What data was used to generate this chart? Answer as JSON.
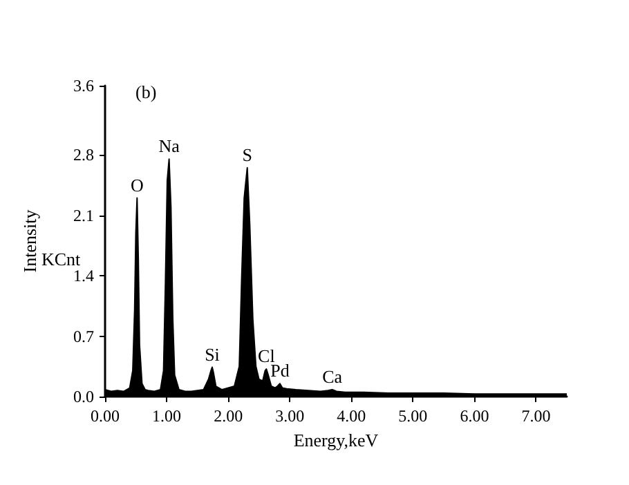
{
  "chart_data": {
    "type": "area",
    "xlabel": "Energy,keV",
    "ylabel": "Intensity",
    "x": [
      0,
      0.1,
      0.2,
      0.3,
      0.4,
      0.45,
      0.48,
      0.5,
      0.52,
      0.54,
      0.56,
      0.6,
      0.65,
      0.7,
      0.8,
      0.9,
      0.95,
      0.98,
      1.01,
      1.04,
      1.07,
      1.1,
      1.13,
      1.2,
      1.3,
      1.4,
      1.5,
      1.6,
      1.68,
      1.72,
      1.74,
      1.76,
      1.8,
      1.9,
      2.0,
      2.1,
      2.18,
      2.22,
      2.26,
      2.31,
      2.35,
      2.4,
      2.45,
      2.5,
      2.56,
      2.6,
      2.62,
      2.65,
      2.7,
      2.76,
      2.8,
      2.84,
      2.88,
      2.95,
      3.1,
      3.3,
      3.5,
      3.62,
      3.69,
      3.76,
      3.9,
      4.2,
      4.6,
      5.0,
      5.5,
      6.0,
      6.5,
      7.0,
      7.5
    ],
    "series": [
      {
        "color": "#000000",
        "values": [
          0.08,
          0.06,
          0.07,
          0.06,
          0.1,
          0.3,
          1.0,
          1.9,
          2.3,
          1.6,
          0.6,
          0.15,
          0.08,
          0.07,
          0.06,
          0.08,
          0.3,
          1.3,
          2.5,
          2.75,
          2.2,
          0.9,
          0.25,
          0.08,
          0.06,
          0.06,
          0.07,
          0.08,
          0.2,
          0.3,
          0.34,
          0.28,
          0.12,
          0.08,
          0.1,
          0.12,
          0.35,
          1.4,
          2.3,
          2.65,
          2.0,
          0.9,
          0.35,
          0.2,
          0.18,
          0.3,
          0.32,
          0.25,
          0.12,
          0.1,
          0.12,
          0.15,
          0.1,
          0.09,
          0.08,
          0.07,
          0.06,
          0.07,
          0.08,
          0.06,
          0.05,
          0.05,
          0.04,
          0.04,
          0.04,
          0.03,
          0.03,
          0.03,
          0.03
        ]
      }
    ],
    "xlim": [
      0,
      7.5
    ],
    "xticks": [
      {
        "value": 0,
        "label": "0.00"
      },
      {
        "value": 1,
        "label": "1.00"
      },
      {
        "value": 2,
        "label": "2.00"
      },
      {
        "value": 3,
        "label": "3.00"
      },
      {
        "value": 4,
        "label": "4.00"
      },
      {
        "value": 5,
        "label": "5.00"
      },
      {
        "value": 6,
        "label": "6.00"
      },
      {
        "value": 7,
        "label": "7.00"
      }
    ],
    "ylim": [
      0,
      3.6
    ],
    "yticks": [
      {
        "value": 0,
        "label": "0.0"
      },
      0.7,
      1.4,
      2.1,
      2.8,
      3.6
    ],
    "grid": false,
    "marker": "none",
    "annotations": [
      "(b)",
      "KCnt",
      {
        "text": "O",
        "x": 0.52,
        "y": 2.3
      },
      {
        "text": "Na",
        "x": 1.04,
        "y": 2.75
      },
      {
        "text": "Si",
        "x": 1.74,
        "y": 0.34
      },
      {
        "text": "S",
        "x": 2.31,
        "y": 2.65
      },
      {
        "text": "Cl",
        "x": 2.62,
        "y": 0.32
      },
      {
        "text": "Pd",
        "x": 2.84,
        "y": 0.15
      },
      {
        "text": "Ca",
        "x": 3.69,
        "y": 0.08
      }
    ]
  }
}
